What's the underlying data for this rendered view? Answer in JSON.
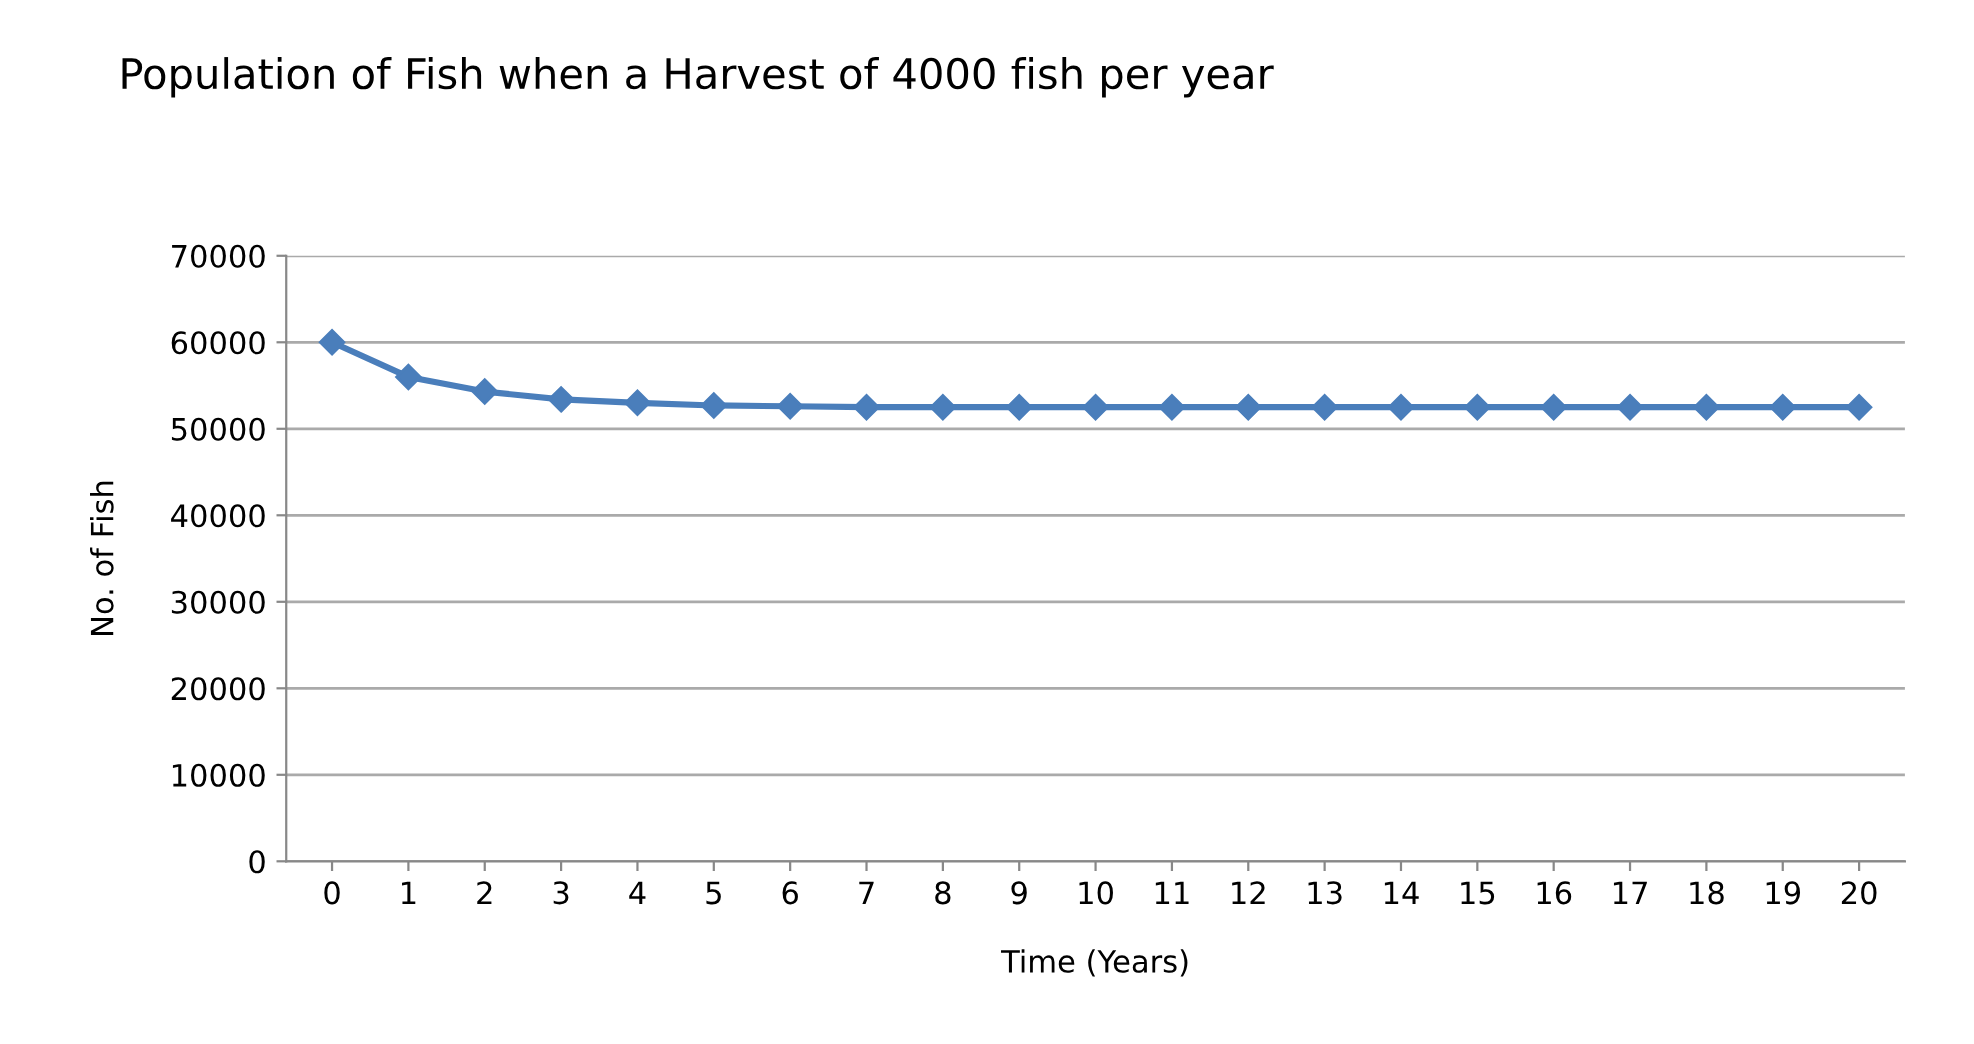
{
  "chart_data": {
    "type": "line",
    "title": "Population of Fish when a Harvest of 4000 fish per year",
    "xlabel": "Time (Years)",
    "ylabel": "No. of Fish",
    "categories": [
      "0",
      "1",
      "2",
      "3",
      "4",
      "5",
      "6",
      "7",
      "8",
      "9",
      "10",
      "11",
      "12",
      "13",
      "14",
      "15",
      "16",
      "17",
      "18",
      "19",
      "20"
    ],
    "series": [
      {
        "color": "#4a7ebb",
        "values": [
          60000,
          56000,
          54300,
          53400,
          53000,
          52700,
          52600,
          52500,
          52500,
          52500,
          52500,
          52500,
          52500,
          52500,
          52500,
          52500,
          52500,
          52500,
          52500,
          52500,
          52500
        ]
      }
    ],
    "ylim": [
      0,
      70000
    ],
    "yticks": [
      0,
      10000,
      20000,
      30000,
      40000,
      50000,
      60000,
      70000
    ],
    "grid": "y",
    "legend": false,
    "marker": "diamond",
    "line_style": "solid"
  }
}
